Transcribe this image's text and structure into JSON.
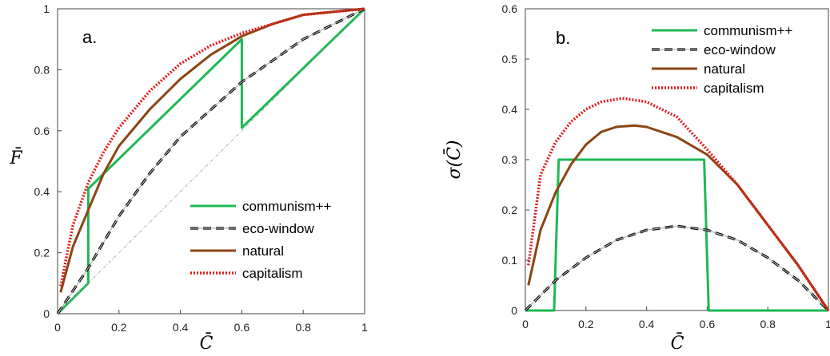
{
  "chart_data": [
    {
      "type": "line",
      "panel_label": "a.",
      "xlabel": "C̄",
      "ylabel": "F̄",
      "xlim": [
        0,
        1
      ],
      "ylim": [
        0,
        1
      ],
      "xticks": [
        "0",
        "0.2",
        "0.4",
        "0.6",
        "0.8",
        "1"
      ],
      "yticks": [
        "0",
        "0.2",
        "0.4",
        "0.6",
        "0.8",
        "1"
      ],
      "legend_position": "lower-right",
      "series": [
        {
          "name": "communism++",
          "color": "#1db954",
          "style": "solid",
          "x": [
            0,
            0.1,
            0.1,
            0.6,
            0.6,
            1
          ],
          "y": [
            0,
            0.1,
            0.41,
            0.9,
            0.61,
            1
          ]
        },
        {
          "name": "eco-window",
          "color": "#000000",
          "style": "dash-gray",
          "x": [
            0,
            0.1,
            0.2,
            0.3,
            0.4,
            0.5,
            0.6,
            0.7,
            0.8,
            0.9,
            1
          ],
          "y": [
            0,
            0.15,
            0.32,
            0.46,
            0.58,
            0.67,
            0.76,
            0.83,
            0.9,
            0.95,
            1
          ]
        },
        {
          "name": "natural",
          "color": "#8b4513",
          "style": "solid",
          "x": [
            0.01,
            0.05,
            0.1,
            0.15,
            0.2,
            0.3,
            0.4,
            0.5,
            0.6,
            0.7,
            0.8,
            0.9,
            1
          ],
          "y": [
            0.07,
            0.22,
            0.34,
            0.46,
            0.55,
            0.67,
            0.77,
            0.85,
            0.91,
            0.95,
            0.98,
            0.99,
            1
          ]
        },
        {
          "name": "capitalism",
          "color": "#e41a1c",
          "style": "dotted",
          "x": [
            0.01,
            0.05,
            0.1,
            0.15,
            0.2,
            0.3,
            0.4,
            0.5,
            0.6,
            0.7,
            0.8,
            0.9,
            1
          ],
          "y": [
            0.09,
            0.29,
            0.43,
            0.53,
            0.61,
            0.73,
            0.82,
            0.88,
            0.92,
            0.95,
            0.98,
            0.99,
            1
          ]
        },
        {
          "name": "",
          "color": "#999999",
          "style": "dashdot-thin",
          "x": [
            0,
            1
          ],
          "y": [
            0,
            1
          ]
        }
      ]
    },
    {
      "type": "line",
      "panel_label": "b.",
      "xlabel": "C̄",
      "ylabel": "σ(C̄)",
      "xlim": [
        0,
        1
      ],
      "ylim": [
        0,
        0.6
      ],
      "xticks": [
        "0",
        "0.2",
        "0.4",
        "0.6",
        "0.8",
        "1"
      ],
      "yticks": [
        "0",
        "0.1",
        "0.2",
        "0.3",
        "0.4",
        "0.5",
        "0.6"
      ],
      "legend_position": "top-right",
      "series": [
        {
          "name": "communism++",
          "color": "#1db954",
          "style": "solid",
          "x": [
            0,
            0.095,
            0.11,
            0.59,
            0.605,
            1
          ],
          "y": [
            0,
            0,
            0.3,
            0.3,
            0,
            0
          ]
        },
        {
          "name": "eco-window",
          "color": "#000000",
          "style": "dash-gray",
          "x": [
            0,
            0.1,
            0.2,
            0.3,
            0.4,
            0.5,
            0.6,
            0.7,
            0.8,
            0.9,
            1
          ],
          "y": [
            0,
            0.06,
            0.105,
            0.14,
            0.16,
            0.168,
            0.16,
            0.14,
            0.105,
            0.06,
            0
          ]
        },
        {
          "name": "natural",
          "color": "#8b4513",
          "style": "solid",
          "x": [
            0.01,
            0.05,
            0.1,
            0.15,
            0.2,
            0.25,
            0.3,
            0.36,
            0.4,
            0.5,
            0.6,
            0.7,
            0.8,
            0.9,
            1
          ],
          "y": [
            0.05,
            0.16,
            0.235,
            0.29,
            0.33,
            0.355,
            0.365,
            0.368,
            0.365,
            0.345,
            0.31,
            0.25,
            0.17,
            0.09,
            0
          ]
        },
        {
          "name": "capitalism",
          "color": "#e41a1c",
          "style": "dotted",
          "x": [
            0.01,
            0.05,
            0.1,
            0.15,
            0.2,
            0.25,
            0.32,
            0.4,
            0.5,
            0.6,
            0.7,
            0.8,
            0.9,
            1
          ],
          "y": [
            0.09,
            0.27,
            0.335,
            0.375,
            0.4,
            0.415,
            0.422,
            0.415,
            0.385,
            0.32,
            0.25,
            0.17,
            0.09,
            0
          ]
        }
      ]
    }
  ]
}
